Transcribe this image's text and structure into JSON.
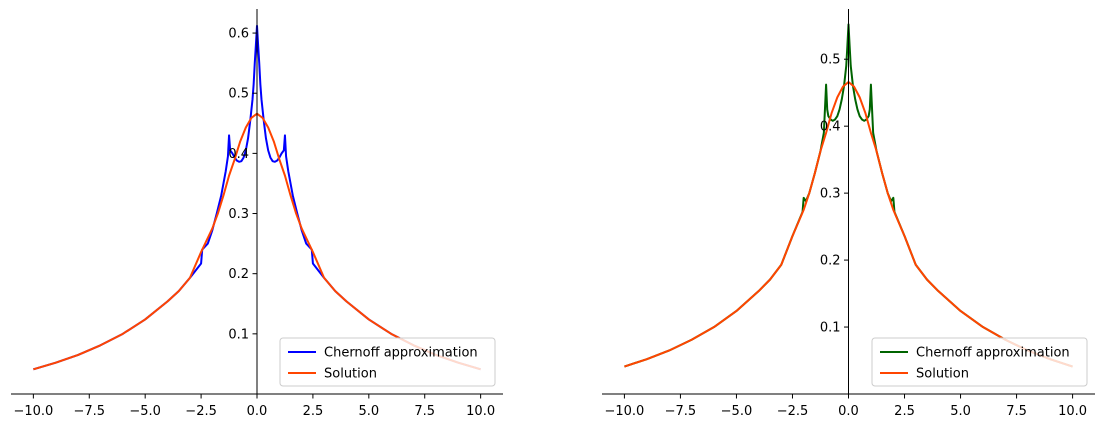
{
  "chart_data": [
    {
      "type": "line",
      "xlim": [
        -11,
        11
      ],
      "ylim": [
        0.0,
        0.64
      ],
      "xticks": [
        -10.0,
        -7.5,
        -5.0,
        -2.5,
        0.0,
        2.5,
        5.0,
        7.5,
        10.0
      ],
      "xtick_labels": [
        "−10.0",
        "−7.5",
        "−5.0",
        "−2.5",
        "0.0",
        "2.5",
        "5.0",
        "7.5",
        "10.0"
      ],
      "yticks": [
        0.1,
        0.2,
        0.3,
        0.4,
        0.5,
        0.6
      ],
      "ytick_labels": [
        "0.1",
        "0.2",
        "0.3",
        "0.4",
        "0.5",
        "0.6"
      ],
      "legend": "lower-right",
      "grid": false,
      "series": [
        {
          "name": "Chernoff approximation",
          "color": "#0000ff",
          "x": [
            -10,
            -9,
            -8,
            -7,
            -6,
            -5,
            -4,
            -3.5,
            -3,
            -2.5,
            -2.45,
            -2.2,
            -2.0,
            -1.8,
            -1.6,
            -1.4,
            -1.3,
            -1.25,
            -1.2,
            -1.1,
            -1.0,
            -0.9,
            -0.8,
            -0.7,
            -0.6,
            -0.5,
            -0.4,
            -0.3,
            -0.2,
            -0.15,
            -0.1,
            -0.05,
            0,
            0.05,
            0.1,
            0.15,
            0.2,
            0.3,
            0.4,
            0.5,
            0.6,
            0.7,
            0.8,
            0.9,
            1.0,
            1.1,
            1.2,
            1.25,
            1.3,
            1.4,
            1.6,
            1.8,
            2.0,
            2.2,
            2.45,
            2.5,
            3,
            3.5,
            4,
            5,
            6,
            7,
            8,
            9,
            10
          ],
          "y": [
            0.041,
            0.052,
            0.065,
            0.081,
            0.1,
            0.124,
            0.154,
            0.171,
            0.193,
            0.217,
            0.24,
            0.25,
            0.272,
            0.3,
            0.33,
            0.37,
            0.395,
            0.43,
            0.405,
            0.4,
            0.393,
            0.388,
            0.386,
            0.387,
            0.393,
            0.405,
            0.425,
            0.455,
            0.49,
            0.515,
            0.55,
            0.58,
            0.612,
            0.58,
            0.55,
            0.515,
            0.49,
            0.455,
            0.425,
            0.405,
            0.393,
            0.387,
            0.386,
            0.388,
            0.393,
            0.4,
            0.405,
            0.43,
            0.395,
            0.37,
            0.33,
            0.3,
            0.272,
            0.25,
            0.24,
            0.217,
            0.193,
            0.171,
            0.154,
            0.124,
            0.1,
            0.081,
            0.065,
            0.052,
            0.041
          ]
        },
        {
          "name": "Solution",
          "color": "#ff4500",
          "x": [
            -10,
            -9,
            -8,
            -7,
            -6,
            -5,
            -4,
            -3.5,
            -3,
            -2.5,
            -2,
            -1.75,
            -1.5,
            -1.25,
            -1,
            -0.75,
            -0.5,
            -0.25,
            0,
            0.25,
            0.5,
            0.75,
            1,
            1.25,
            1.5,
            1.75,
            2,
            2.5,
            3,
            3.5,
            4,
            5,
            6,
            7,
            8,
            9,
            10
          ],
          "y": [
            0.041,
            0.052,
            0.065,
            0.081,
            0.1,
            0.124,
            0.154,
            0.171,
            0.193,
            0.236,
            0.275,
            0.3,
            0.33,
            0.363,
            0.39,
            0.42,
            0.443,
            0.459,
            0.466,
            0.459,
            0.443,
            0.42,
            0.39,
            0.363,
            0.33,
            0.3,
            0.275,
            0.236,
            0.193,
            0.171,
            0.154,
            0.124,
            0.1,
            0.081,
            0.065,
            0.052,
            0.041
          ]
        }
      ]
    },
    {
      "type": "line",
      "xlim": [
        -11,
        11
      ],
      "ylim": [
        0.0,
        0.575
      ],
      "xticks": [
        -10.0,
        -7.5,
        -5.0,
        -2.5,
        0.0,
        2.5,
        5.0,
        7.5,
        10.0
      ],
      "xtick_labels": [
        "−10.0",
        "−7.5",
        "−5.0",
        "−2.5",
        "0.0",
        "2.5",
        "5.0",
        "7.5",
        "10.0"
      ],
      "yticks": [
        0.1,
        0.2,
        0.3,
        0.4,
        0.5
      ],
      "ytick_labels": [
        "0.1",
        "0.2",
        "0.3",
        "0.4",
        "0.5"
      ],
      "legend": "lower-right",
      "grid": false,
      "series": [
        {
          "name": "Chernoff approximation",
          "color": "#006400",
          "x": [
            -10,
            -9,
            -8,
            -7,
            -6,
            -5,
            -4,
            -3.5,
            -3,
            -2.5,
            -2.05,
            -2.0,
            -1.9,
            -1.75,
            -1.5,
            -1.25,
            -1.1,
            -1.0,
            -0.95,
            -0.9,
            -0.8,
            -0.7,
            -0.6,
            -0.5,
            -0.4,
            -0.3,
            -0.2,
            -0.1,
            -0.05,
            0,
            0.05,
            0.1,
            0.2,
            0.3,
            0.4,
            0.5,
            0.6,
            0.7,
            0.8,
            0.9,
            0.95,
            1.0,
            1.1,
            1.25,
            1.5,
            1.75,
            1.9,
            2.0,
            2.05,
            2.5,
            3,
            3.5,
            4,
            5,
            6,
            7,
            8,
            9,
            10
          ],
          "y": [
            0.041,
            0.052,
            0.065,
            0.081,
            0.1,
            0.124,
            0.154,
            0.171,
            0.193,
            0.236,
            0.272,
            0.293,
            0.288,
            0.3,
            0.33,
            0.363,
            0.39,
            0.462,
            0.425,
            0.415,
            0.41,
            0.408,
            0.41,
            0.415,
            0.425,
            0.44,
            0.46,
            0.49,
            0.52,
            0.552,
            0.52,
            0.49,
            0.46,
            0.44,
            0.425,
            0.415,
            0.41,
            0.408,
            0.41,
            0.415,
            0.425,
            0.462,
            0.39,
            0.363,
            0.33,
            0.3,
            0.288,
            0.293,
            0.272,
            0.236,
            0.193,
            0.171,
            0.154,
            0.124,
            0.1,
            0.081,
            0.065,
            0.052,
            0.041
          ]
        },
        {
          "name": "Solution",
          "color": "#ff4500",
          "x": [
            -10,
            -9,
            -8,
            -7,
            -6,
            -5,
            -4,
            -3.5,
            -3,
            -2.5,
            -2,
            -1.75,
            -1.5,
            -1.25,
            -1,
            -0.75,
            -0.5,
            -0.25,
            0,
            0.25,
            0.5,
            0.75,
            1,
            1.25,
            1.5,
            1.75,
            2,
            2.5,
            3,
            3.5,
            4,
            5,
            6,
            7,
            8,
            9,
            10
          ],
          "y": [
            0.041,
            0.052,
            0.065,
            0.081,
            0.1,
            0.124,
            0.154,
            0.171,
            0.193,
            0.236,
            0.275,
            0.3,
            0.33,
            0.363,
            0.39,
            0.42,
            0.443,
            0.459,
            0.466,
            0.459,
            0.443,
            0.42,
            0.39,
            0.363,
            0.33,
            0.3,
            0.275,
            0.236,
            0.193,
            0.171,
            0.154,
            0.124,
            0.1,
            0.081,
            0.065,
            0.052,
            0.041
          ]
        }
      ]
    }
  ]
}
